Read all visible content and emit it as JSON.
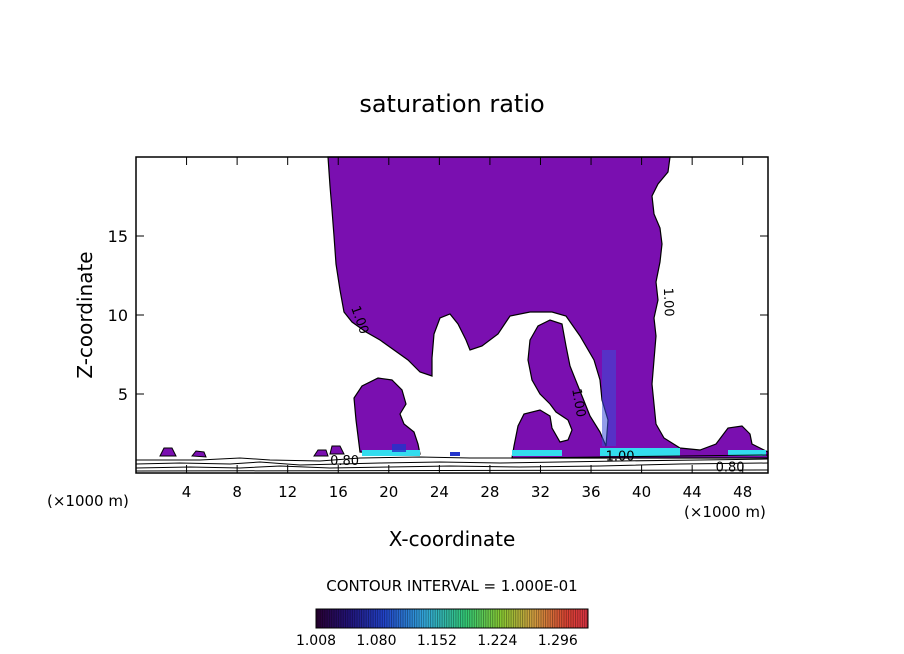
{
  "chart_data": {
    "type": "contour",
    "title": "saturation ratio",
    "xlabel": "X-coordinate",
    "ylabel": "Z-coordinate",
    "x_unit": "(×1000 m)",
    "x_unit_right": "(×1000 m)",
    "xlim": [
      0,
      50
    ],
    "ylim": [
      0,
      20
    ],
    "x_ticks": [
      4,
      8,
      12,
      16,
      20,
      24,
      28,
      32,
      36,
      40,
      44,
      48
    ],
    "y_ticks": [
      5,
      10,
      15
    ],
    "contour_interval_text": "CONTOUR INTERVAL = 1.000E-01",
    "contour_labels": [
      {
        "text": "1.00",
        "x": 17.4,
        "z": 9.6,
        "rotate": 70
      },
      {
        "text": "1.00",
        "x": 41.8,
        "z": 10.8,
        "rotate": 88
      },
      {
        "text": "1.00",
        "x": 34.7,
        "z": 4.4,
        "rotate": 80
      },
      {
        "text": "1.00",
        "x": 38.3,
        "z": 0.8,
        "rotate": 0
      },
      {
        "text": "0.80",
        "x": 16.5,
        "z": 0.5,
        "rotate": 0
      },
      {
        "text": "0.80",
        "x": 47.0,
        "z": 0.1,
        "rotate": 0
      }
    ],
    "colorbar": {
      "ticks": [
        "1.008",
        "1.080",
        "1.152",
        "1.224",
        "1.296"
      ],
      "min": 1.008,
      "max": 1.332
    },
    "colors": {
      "fill": "#7a0fb0",
      "outline": "#000000",
      "cyan": "#33ddee",
      "blue": "#2233cc"
    }
  }
}
